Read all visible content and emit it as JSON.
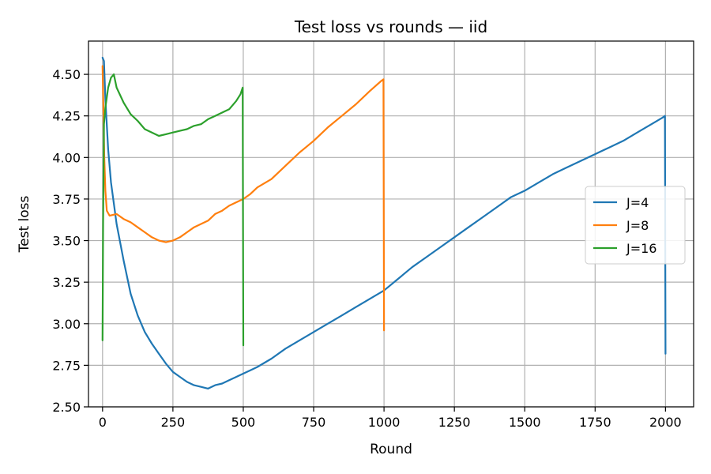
{
  "chart_data": {
    "type": "line",
    "title": "Test loss vs rounds — iid",
    "xlabel": "Round",
    "ylabel": "Test loss",
    "xlim": [
      -50,
      2100
    ],
    "ylim": [
      2.5,
      4.7
    ],
    "xticks": [
      0,
      250,
      500,
      750,
      1000,
      1250,
      1500,
      1750,
      2000
    ],
    "yticks": [
      2.5,
      2.75,
      3.0,
      3.25,
      3.5,
      3.75,
      4.0,
      4.25,
      4.5
    ],
    "xtick_labels": [
      "0",
      "250",
      "500",
      "750",
      "1000",
      "1250",
      "1500",
      "1750",
      "2000"
    ],
    "ytick_labels": [
      "2.50",
      "2.75",
      "3.00",
      "3.25",
      "3.50",
      "3.75",
      "4.00",
      "4.25",
      "4.50"
    ],
    "grid": true,
    "legend_position": "center-right",
    "series": [
      {
        "name": "J=4",
        "color": "#1f77b4",
        "x": [
          0,
          5,
          10,
          20,
          30,
          50,
          75,
          100,
          125,
          150,
          175,
          200,
          225,
          250,
          275,
          300,
          325,
          350,
          375,
          400,
          425,
          450,
          475,
          500,
          525,
          550,
          600,
          650,
          700,
          750,
          800,
          850,
          900,
          950,
          1000,
          1050,
          1100,
          1150,
          1200,
          1250,
          1300,
          1350,
          1400,
          1450,
          1500,
          1550,
          1600,
          1650,
          1700,
          1750,
          1800,
          1850,
          1900,
          1950,
          1990,
          1998,
          2000
        ],
        "y": [
          4.6,
          4.58,
          4.35,
          4.05,
          3.85,
          3.6,
          3.38,
          3.18,
          3.05,
          2.95,
          2.88,
          2.82,
          2.76,
          2.71,
          2.68,
          2.65,
          2.63,
          2.62,
          2.61,
          2.63,
          2.64,
          2.66,
          2.68,
          2.7,
          2.72,
          2.74,
          2.79,
          2.85,
          2.9,
          2.95,
          3.0,
          3.05,
          3.1,
          3.15,
          3.2,
          3.27,
          3.34,
          3.4,
          3.46,
          3.52,
          3.58,
          3.64,
          3.7,
          3.76,
          3.8,
          3.85,
          3.9,
          3.94,
          3.98,
          4.02,
          4.06,
          4.1,
          4.15,
          4.2,
          4.24,
          4.25,
          2.82
        ]
      },
      {
        "name": "J=8",
        "color": "#ff7f0e",
        "x": [
          0,
          3,
          6,
          10,
          15,
          25,
          50,
          75,
          100,
          125,
          150,
          175,
          200,
          225,
          250,
          275,
          300,
          325,
          350,
          375,
          400,
          425,
          450,
          475,
          500,
          525,
          550,
          600,
          650,
          700,
          750,
          800,
          850,
          900,
          950,
          990,
          998,
          1000
        ],
        "y": [
          4.55,
          4.3,
          4.0,
          3.8,
          3.68,
          3.65,
          3.66,
          3.63,
          3.61,
          3.58,
          3.55,
          3.52,
          3.5,
          3.49,
          3.5,
          3.52,
          3.55,
          3.58,
          3.6,
          3.62,
          3.66,
          3.68,
          3.71,
          3.73,
          3.75,
          3.78,
          3.82,
          3.87,
          3.95,
          4.03,
          4.1,
          4.18,
          4.25,
          4.32,
          4.4,
          4.46,
          4.47,
          2.96
        ]
      },
      {
        "name": "J=16",
        "color": "#2ca02c",
        "x": [
          0,
          2,
          5,
          10,
          20,
          30,
          40,
          50,
          75,
          100,
          125,
          150,
          175,
          200,
          225,
          250,
          275,
          300,
          325,
          350,
          375,
          400,
          425,
          450,
          475,
          490,
          498,
          500
        ],
        "y": [
          2.9,
          3.6,
          4.2,
          4.3,
          4.42,
          4.48,
          4.5,
          4.42,
          4.33,
          4.26,
          4.22,
          4.17,
          4.15,
          4.13,
          4.14,
          4.15,
          4.16,
          4.17,
          4.19,
          4.2,
          4.23,
          4.25,
          4.27,
          4.29,
          4.34,
          4.38,
          4.42,
          2.87
        ]
      }
    ]
  }
}
